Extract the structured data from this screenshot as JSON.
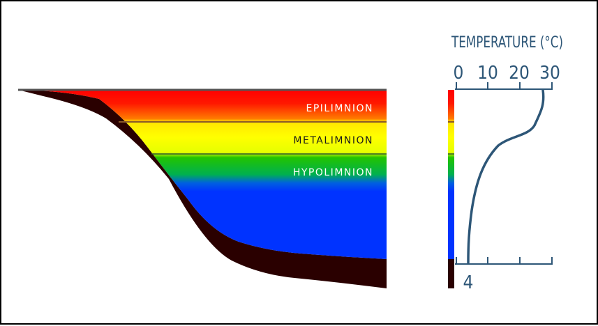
{
  "diagram": {
    "layers": [
      {
        "name": "EPILIMNION",
        "text_color": "#ffffff"
      },
      {
        "name": "METALIMNION",
        "text_color": "#1a1a1a"
      },
      {
        "name": "HYPOLIMNION",
        "text_color": "#ffffff"
      }
    ],
    "colors": {
      "epilimnion_top": "#ff0000",
      "epilimnion_bottom": "#ff8a00",
      "metalimnion": "#ffff00",
      "hypolimnion_top": "#22c400",
      "hypolimnion_bottom": "#0033ff",
      "lake_bed": "#2a0000",
      "axis": "#2d5677",
      "curve": "#2d5677"
    },
    "temperature_axis": {
      "title": "TEMPERATURE (°C)",
      "ticks": [
        "0",
        "10",
        "20",
        "30"
      ],
      "bottom_value": "4"
    }
  },
  "chart_data": {
    "type": "line",
    "title": "TEMPERATURE (°C)",
    "xlabel": "TEMPERATURE (°C)",
    "ylabel": "",
    "xlim": [
      0,
      30
    ],
    "x_ticks": [
      0,
      10,
      20,
      30
    ],
    "series": [
      {
        "x": [
          27,
          26.5,
          24,
          18,
          13,
          10,
          8,
          6.5,
          5.5,
          4.8,
          4.2,
          4
        ],
        "y": [
          0,
          0.05,
          0.17,
          0.28,
          0.35,
          0.45,
          0.55,
          0.65,
          0.75,
          0.85,
          0.95,
          1
        ]
      }
    ]
  }
}
